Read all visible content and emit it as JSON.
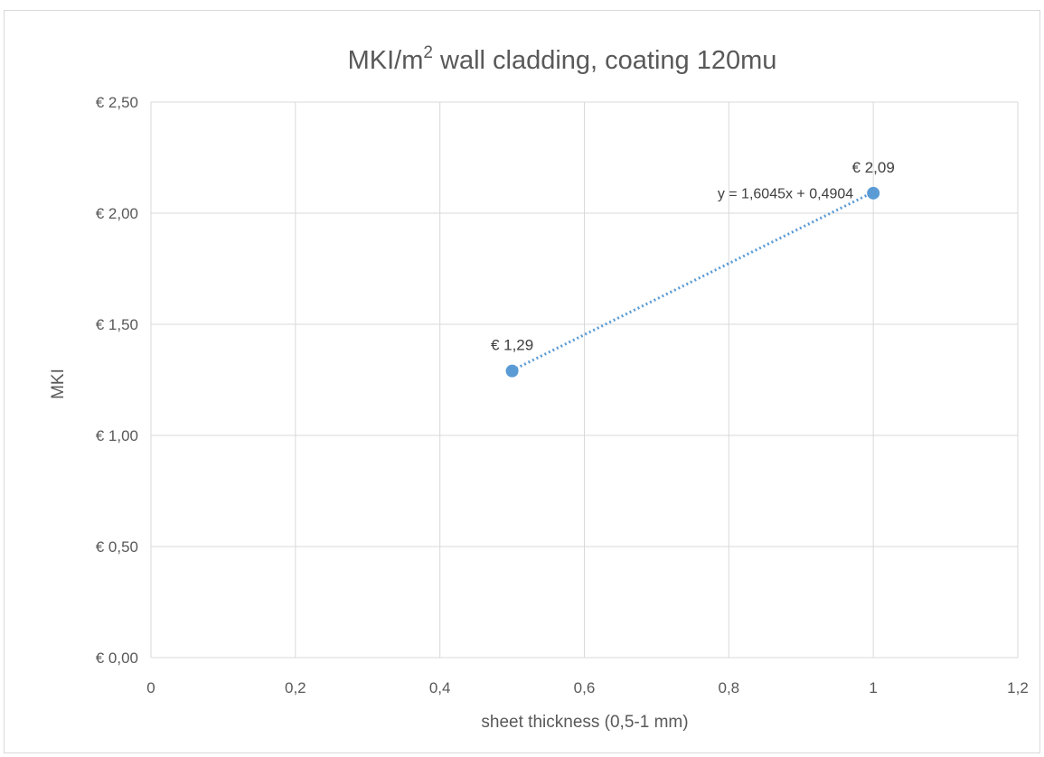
{
  "chart_data": {
    "type": "scatter",
    "title_main": "MKI/m",
    "title_sup": "2",
    "title_rest": " wall cladding, coating 120mu",
    "xlabel": "sheet thickness (0,5-1 mm)",
    "ylabel": "MKI",
    "xlim": [
      0,
      1.2
    ],
    "ylim": [
      0,
      2.5
    ],
    "x_ticks": [
      0,
      0.2,
      0.4,
      0.6,
      0.8,
      1,
      1.2
    ],
    "x_tick_labels": [
      "0",
      "0,2",
      "0,4",
      "0,6",
      "0,8",
      "1",
      "1,2"
    ],
    "y_ticks": [
      0,
      0.5,
      1,
      1.5,
      2,
      2.5
    ],
    "y_tick_labels": [
      "€ 0,00",
      "€ 0,50",
      "€ 1,00",
      "€ 1,50",
      "€ 2,00",
      "€ 2,50"
    ],
    "grid": true,
    "points": [
      {
        "x": 0.5,
        "y": 1.29,
        "label": "€ 1,29"
      },
      {
        "x": 1,
        "y": 2.09,
        "label": "€ 2,09"
      }
    ],
    "trendline": {
      "type": "linear",
      "slope": 1.6045,
      "intercept": 0.4904,
      "x_range": [
        0.5,
        1
      ],
      "equation": "y = 1,6045x + 0,4904"
    },
    "colors": {
      "marker": "#5b9bd5",
      "trendline": "#5b9bd5",
      "grid": "#d9d9d9"
    }
  }
}
